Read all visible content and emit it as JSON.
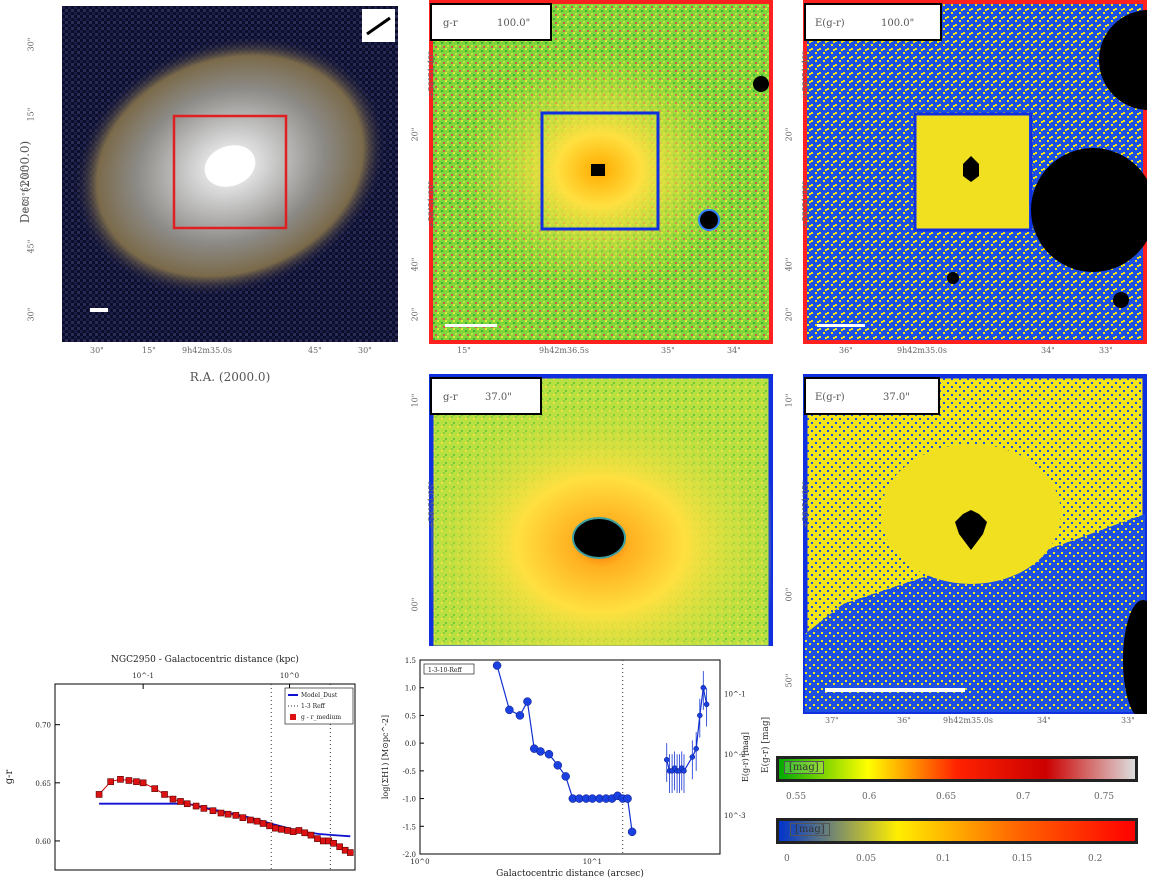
{
  "optical": {
    "ylabel": "Dec. (2000.0)",
    "xlabel": "R.A. (2000.0)",
    "yticks": [
      "30\"",
      "15\"",
      "+58°51'00\"",
      "45\"",
      "30\""
    ],
    "xticks": [
      "30\"",
      "15\"",
      "9h42m35.0s",
      "45\"",
      "30\""
    ]
  },
  "panels": [
    {
      "label": "g-r",
      "size": "100.0\"",
      "yticks": [
        "+58°51'40\"",
        "20\"",
        "+58°51'00\"",
        "40\"",
        "20\""
      ],
      "xticks": [
        "15\"",
        "9h42m36.5s",
        "35\"",
        "34\""
      ]
    },
    {
      "label": "E(g-r)",
      "size": "100.0\"",
      "yticks": [
        "+58°51'40\"",
        "20\"",
        "+58°51'00\"",
        "40\"",
        "20\""
      ],
      "xticks": [
        "36\"",
        "9h42m35.0s",
        "34\"",
        "33\""
      ]
    },
    {
      "label": "g-r",
      "size": "37.0\"",
      "yticks": [
        "10\"",
        "+58°51'05\"",
        "00\""
      ]
    },
    {
      "label": "E(g-r)",
      "size": "37.0\"",
      "yticks": [
        "10\"",
        "+58°51'05\"",
        "00\"",
        "50\""
      ],
      "xticks": [
        "37\"",
        "36\"",
        "9h42m35.0s",
        "34\"",
        "33\""
      ]
    }
  ],
  "colorbars": [
    {
      "title": "[mag]",
      "axis_label": "E(g-r) [mag]",
      "ticks": [
        "0.55",
        "0.6",
        "0.65",
        "0.7",
        "0.75"
      ],
      "colors": [
        "#00aa00",
        "#ffff00",
        "#ff2200",
        "#cc0000",
        "#dddddd"
      ]
    },
    {
      "title": "[mag]",
      "ticks": [
        "0",
        "0.05",
        "0.1",
        "0.15",
        "0.2"
      ],
      "colors": [
        "#0033cc",
        "#ffee00",
        "#ff6600",
        "#ff0000"
      ]
    }
  ],
  "chart_data": [
    {
      "type": "line",
      "title": "NGC2950 - Galactocentric distance (kpc)",
      "ylabel": "g-r",
      "top_ticks": [
        "10^-1",
        "10^0"
      ],
      "y_ticks": [
        "0.70",
        "0.65",
        "0.60"
      ],
      "legend": [
        "Model_Dust",
        "1-3 Reff",
        "g - r_medium"
      ],
      "ylim": [
        0.58,
        0.72
      ],
      "series": [
        {
          "name": "g - r_medium",
          "x": [
            0.05,
            0.06,
            0.07,
            0.08,
            0.09,
            0.1,
            0.12,
            0.14,
            0.16,
            0.18,
            0.2,
            0.23,
            0.26,
            0.3,
            0.34,
            0.38,
            0.43,
            0.48,
            0.54,
            0.6,
            0.66,
            0.73,
            0.8,
            0.88,
            0.97,
            1.06,
            1.16,
            1.27,
            1.4,
            1.55,
            1.7,
            1.85,
            2.0,
            2.2,
            2.4,
            2.6
          ],
          "values": [
            0.64,
            0.651,
            0.653,
            0.652,
            0.651,
            0.65,
            0.645,
            0.64,
            0.636,
            0.634,
            0.632,
            0.63,
            0.628,
            0.626,
            0.624,
            0.623,
            0.622,
            0.62,
            0.618,
            0.617,
            0.615,
            0.613,
            0.611,
            0.61,
            0.609,
            0.608,
            0.609,
            0.607,
            0.605,
            0.602,
            0.6,
            0.6,
            0.598,
            0.595,
            0.592,
            0.59
          ]
        },
        {
          "name": "Model_Dust",
          "x": [
            0.05,
            0.1,
            0.15,
            0.2,
            0.3,
            0.5,
            0.8,
            1.2,
            1.6,
            2.0,
            2.6
          ],
          "values": [
            0.632,
            0.632,
            0.632,
            0.632,
            0.627,
            0.621,
            0.614,
            0.608,
            0.606,
            0.605,
            0.604
          ]
        }
      ]
    },
    {
      "type": "line",
      "xlabel": "Galactocentric distance (arcsec)",
      "ylabel": "log(ΣH1) [M⊙pc^-2]",
      "ylabel_right": "E(g-r) [mag]",
      "legend": [
        "1-3-10-Reff"
      ],
      "y_ticks": [
        "1.5",
        "1.0",
        "0.5",
        "0.0",
        "-0.5",
        "-1.0",
        "-1.5",
        "-2.0"
      ],
      "x_ticks": [
        "10^0",
        "10^1"
      ],
      "right_ticks": [
        "10^-1",
        "10^-2",
        "10^-3"
      ],
      "ylim": [
        -2.0,
        1.5
      ],
      "series": [
        {
          "name": "1-3-10-Reff",
          "x": [
            2.8,
            3.3,
            3.8,
            4.2,
            4.6,
            5.0,
            5.6,
            6.3,
            7.0,
            7.7,
            8.4,
            9.2,
            10,
            11,
            12,
            13,
            14,
            15,
            16,
            17,
            27,
            28,
            29,
            30,
            31,
            32,
            33,
            34,
            38,
            40,
            42,
            44,
            46
          ],
          "values": [
            1.4,
            0.6,
            0.5,
            0.75,
            -0.1,
            -0.15,
            -0.2,
            -0.4,
            -0.6,
            -1.0,
            -1.0,
            -1.0,
            -1.0,
            -1.0,
            -1.0,
            -1.0,
            -0.95,
            -1.0,
            -1.0,
            -1.6,
            -0.3,
            -0.5,
            -0.5,
            -0.45,
            -0.5,
            -0.5,
            -0.45,
            -0.5,
            -0.25,
            -0.1,
            0.5,
            1.0,
            0.7
          ]
        }
      ]
    }
  ]
}
